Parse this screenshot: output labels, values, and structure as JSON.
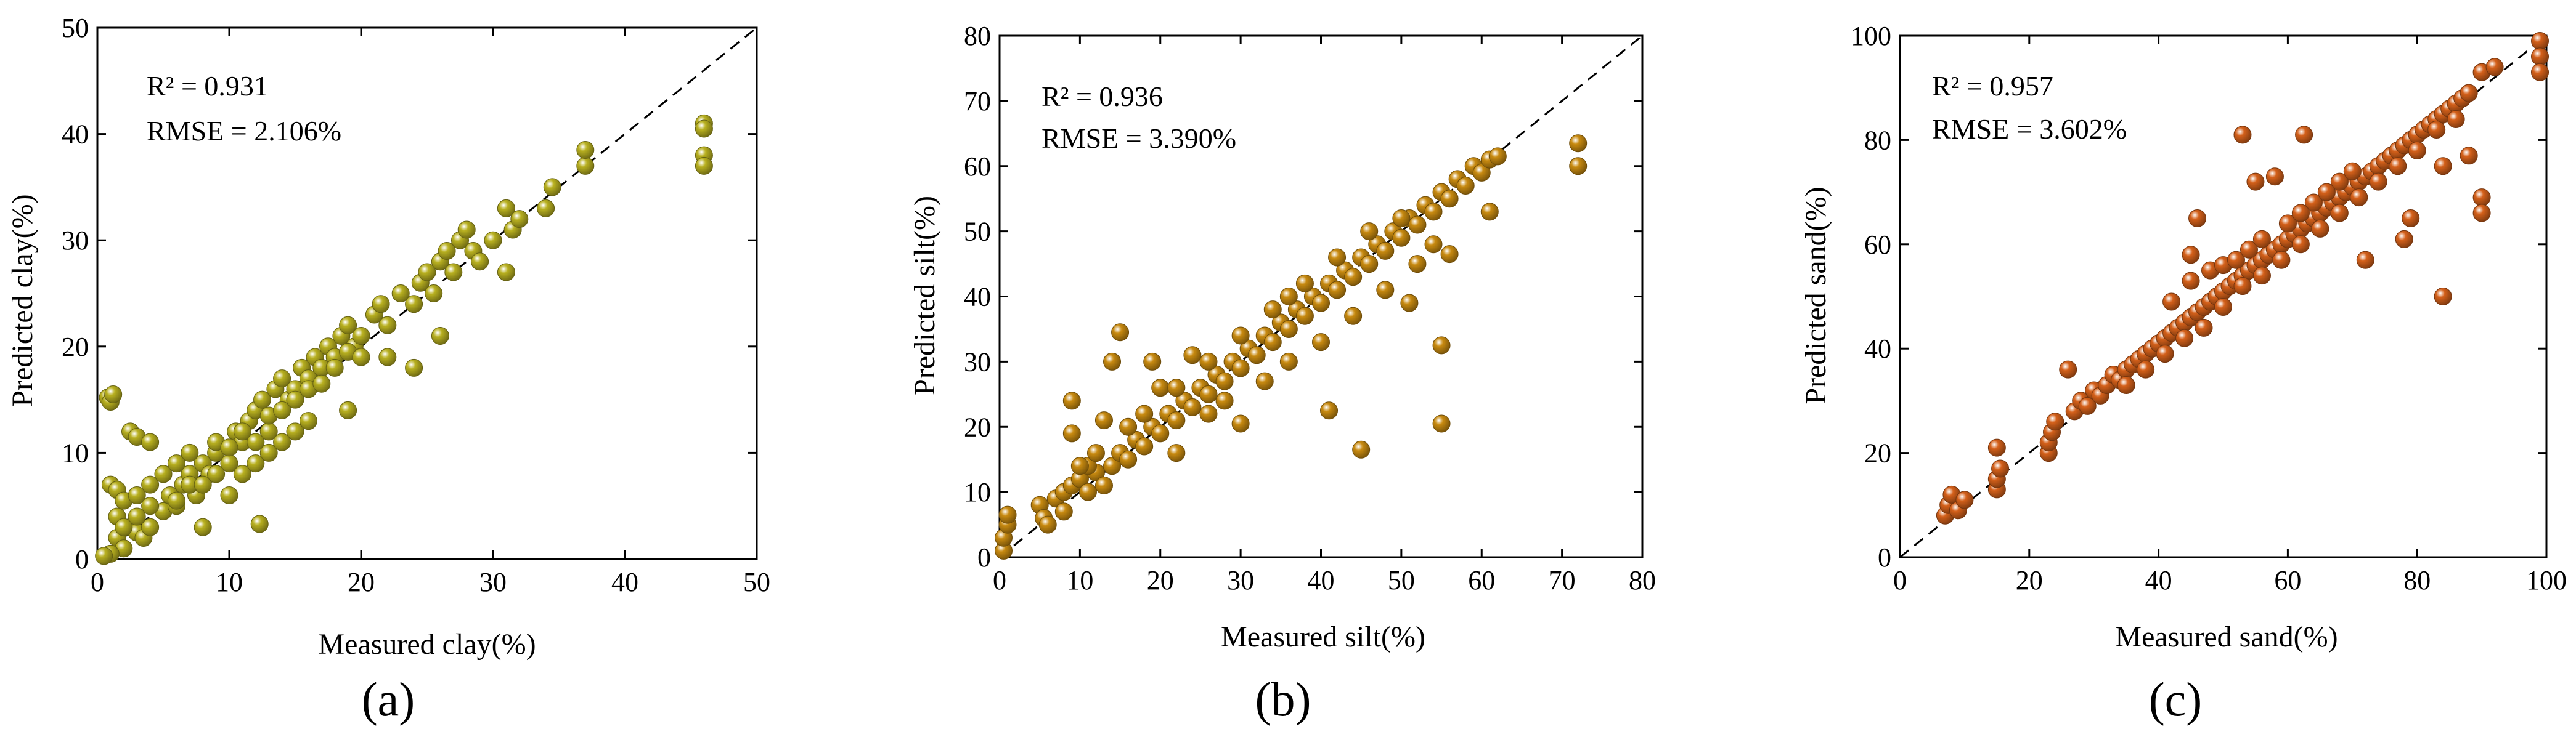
{
  "chart_data": [
    {
      "type": "scatter",
      "panel_label": "(a)",
      "xlabel": "Measured clay(%)",
      "ylabel": "Predicted clay(%)",
      "xlim": [
        0,
        50
      ],
      "ylim": [
        0,
        50
      ],
      "xticks": [
        0,
        10,
        20,
        30,
        40,
        50
      ],
      "yticks": [
        0,
        10,
        20,
        30,
        40,
        50
      ],
      "stats": {
        "r2": "R² = 0.931",
        "rmse": "RMSE = 2.106%"
      },
      "reference_line": "1:1",
      "marker_color": "#b8b020",
      "points": [
        [
          0.8,
          15.2
        ],
        [
          1,
          14.8
        ],
        [
          1.2,
          15.5
        ],
        [
          1,
          7
        ],
        [
          1.5,
          6.5
        ],
        [
          2,
          5.5
        ],
        [
          2.5,
          12
        ],
        [
          3,
          11.5
        ],
        [
          4,
          11
        ],
        [
          1.5,
          2
        ],
        [
          2,
          1
        ],
        [
          1,
          0.5
        ],
        [
          0.5,
          0.3
        ],
        [
          1.5,
          4
        ],
        [
          2.5,
          3
        ],
        [
          3,
          2.5
        ],
        [
          3.5,
          2
        ],
        [
          4,
          3
        ],
        [
          3,
          6
        ],
        [
          4,
          7
        ],
        [
          5,
          4.5
        ],
        [
          5.5,
          6
        ],
        [
          6,
          5
        ],
        [
          6.5,
          7
        ],
        [
          7,
          8
        ],
        [
          7.5,
          6
        ],
        [
          8,
          9
        ],
        [
          8.5,
          8
        ],
        [
          9,
          10
        ],
        [
          9,
          11
        ],
        [
          10,
          9
        ],
        [
          10.5,
          12
        ],
        [
          11,
          11
        ],
        [
          11.5,
          13
        ],
        [
          12,
          14
        ],
        [
          12.5,
          15
        ],
        [
          13,
          12
        ],
        [
          13.5,
          16
        ],
        [
          14,
          17
        ],
        [
          14.5,
          15
        ],
        [
          15,
          16
        ],
        [
          15.5,
          18
        ],
        [
          16,
          17
        ],
        [
          16.5,
          19
        ],
        [
          17,
          18
        ],
        [
          17.5,
          20
        ],
        [
          18,
          19
        ],
        [
          18.5,
          21
        ],
        [
          19,
          22
        ],
        [
          19.5,
          20
        ],
        [
          20,
          21
        ],
        [
          21,
          23
        ],
        [
          21.5,
          24
        ],
        [
          22,
          22
        ],
        [
          23,
          25
        ],
        [
          24,
          24
        ],
        [
          24.5,
          26
        ],
        [
          25,
          27
        ],
        [
          25.5,
          25
        ],
        [
          26,
          28
        ],
        [
          26.5,
          29
        ],
        [
          27,
          27
        ],
        [
          27.5,
          30
        ],
        [
          28,
          31
        ],
        [
          28.5,
          29
        ],
        [
          29,
          28
        ],
        [
          30,
          30
        ],
        [
          31,
          33
        ],
        [
          31.5,
          31
        ],
        [
          32,
          32
        ],
        [
          34,
          33
        ],
        [
          34.5,
          35
        ],
        [
          37,
          37
        ],
        [
          37,
          38.5
        ],
        [
          46,
          41
        ],
        [
          46,
          40.5
        ],
        [
          46,
          38
        ],
        [
          46,
          37
        ],
        [
          6,
          5.5
        ],
        [
          7,
          7
        ],
        [
          8,
          7
        ],
        [
          9,
          8
        ],
        [
          10,
          10.5
        ],
        [
          11,
          12
        ],
        [
          12,
          11
        ],
        [
          13,
          13.5
        ],
        [
          14,
          14
        ],
        [
          15,
          15
        ],
        [
          16,
          16
        ],
        [
          17,
          16.5
        ],
        [
          18,
          18
        ],
        [
          19,
          19.5
        ],
        [
          20,
          19
        ],
        [
          5,
          8
        ],
        [
          6,
          9
        ],
        [
          7,
          10
        ],
        [
          4,
          5
        ],
        [
          3,
          4
        ],
        [
          2,
          3
        ],
        [
          8,
          3
        ],
        [
          12.3,
          3.3
        ],
        [
          19,
          14
        ],
        [
          22,
          19
        ],
        [
          24,
          18
        ],
        [
          26,
          21
        ],
        [
          31,
          27
        ],
        [
          15,
          12
        ],
        [
          16,
          13
        ],
        [
          10,
          6
        ],
        [
          11,
          8
        ],
        [
          12,
          9
        ],
        [
          13,
          10
        ],
        [
          14,
          11
        ]
      ]
    },
    {
      "type": "scatter",
      "panel_label": "(b)",
      "xlabel": "Measured silt(%)",
      "ylabel": "Predicted silt(%)",
      "xlim": [
        0,
        80
      ],
      "ylim": [
        0,
        80
      ],
      "xticks": [
        0,
        10,
        20,
        30,
        40,
        50,
        60,
        70,
        80
      ],
      "yticks": [
        0,
        10,
        20,
        30,
        40,
        50,
        60,
        70,
        80
      ],
      "stats": {
        "r2": "R² = 0.936",
        "rmse": "RMSE = 3.390%"
      },
      "reference_line": "1:1",
      "marker_color": "#c88a10",
      "points": [
        [
          0.5,
          1
        ],
        [
          0.5,
          3
        ],
        [
          1,
          5
        ],
        [
          1,
          6.5
        ],
        [
          5,
          8
        ],
        [
          5.5,
          6
        ],
        [
          6,
          5
        ],
        [
          7,
          9
        ],
        [
          8,
          10
        ],
        [
          9,
          11
        ],
        [
          10,
          12
        ],
        [
          11,
          10
        ],
        [
          12,
          13
        ],
        [
          13,
          11
        ],
        [
          14,
          14
        ],
        [
          15,
          16
        ],
        [
          16,
          15
        ],
        [
          17,
          18
        ],
        [
          18,
          17
        ],
        [
          19,
          20
        ],
        [
          20,
          19
        ],
        [
          21,
          22
        ],
        [
          22,
          21
        ],
        [
          23,
          24
        ],
        [
          24,
          23
        ],
        [
          25,
          26
        ],
        [
          26,
          25
        ],
        [
          27,
          28
        ],
        [
          28,
          27
        ],
        [
          29,
          30
        ],
        [
          30,
          29
        ],
        [
          31,
          32
        ],
        [
          32,
          31
        ],
        [
          33,
          34
        ],
        [
          34,
          33
        ],
        [
          35,
          36
        ],
        [
          36,
          35
        ],
        [
          37,
          38
        ],
        [
          38,
          37
        ],
        [
          39,
          40
        ],
        [
          40,
          39
        ],
        [
          41,
          42
        ],
        [
          42,
          41
        ],
        [
          43,
          44
        ],
        [
          44,
          43
        ],
        [
          45,
          46
        ],
        [
          46,
          45
        ],
        [
          47,
          48
        ],
        [
          48,
          47
        ],
        [
          49,
          50
        ],
        [
          50,
          49
        ],
        [
          51,
          52
        ],
        [
          52,
          51
        ],
        [
          53,
          54
        ],
        [
          54,
          53
        ],
        [
          55,
          56
        ],
        [
          56,
          55
        ],
        [
          57,
          58
        ],
        [
          58,
          57
        ],
        [
          59,
          60
        ],
        [
          60,
          59
        ],
        [
          61,
          61
        ],
        [
          62,
          61.5
        ],
        [
          72,
          63.5
        ],
        [
          72,
          60
        ],
        [
          61,
          53
        ],
        [
          56,
          46.5
        ],
        [
          55,
          32.5
        ],
        [
          55,
          20.5
        ],
        [
          45,
          16.5
        ],
        [
          41,
          22.5
        ],
        [
          51,
          39
        ],
        [
          9,
          24
        ],
        [
          9,
          19
        ],
        [
          14,
          30
        ],
        [
          15,
          34.5
        ],
        [
          19,
          30
        ],
        [
          24,
          31
        ],
        [
          13,
          21
        ],
        [
          11,
          14
        ],
        [
          8,
          7
        ],
        [
          30,
          20.5
        ],
        [
          22,
          16
        ],
        [
          26,
          22
        ],
        [
          20,
          26
        ],
        [
          28,
          24
        ],
        [
          33,
          27
        ],
        [
          36,
          30
        ],
        [
          40,
          33
        ],
        [
          44,
          37
        ],
        [
          48,
          41
        ],
        [
          52,
          45
        ],
        [
          54,
          48
        ],
        [
          36,
          40
        ],
        [
          38,
          42
        ],
        [
          42,
          46
        ],
        [
          46,
          50
        ],
        [
          50,
          52
        ],
        [
          34,
          38
        ],
        [
          30,
          34
        ],
        [
          26,
          30
        ],
        [
          22,
          26
        ],
        [
          18,
          22
        ],
        [
          16,
          20
        ],
        [
          12,
          16
        ],
        [
          10,
          14
        ]
      ]
    },
    {
      "type": "scatter",
      "panel_label": "(c)",
      "xlabel": "Measured sand(%)",
      "ylabel": "Predicted sand(%)",
      "xlim": [
        0,
        100
      ],
      "ylim": [
        0,
        100
      ],
      "xticks": [
        0,
        20,
        40,
        60,
        80,
        100
      ],
      "yticks": [
        0,
        20,
        40,
        60,
        80,
        100
      ],
      "stats": {
        "r2": "R² = 0.957",
        "rmse": "RMSE = 3.602%"
      },
      "reference_line": "1:1",
      "marker_color": "#d4601a",
      "points": [
        [
          7,
          8
        ],
        [
          7.5,
          10
        ],
        [
          8,
          12
        ],
        [
          9,
          9
        ],
        [
          10,
          11
        ],
        [
          15,
          13
        ],
        [
          15,
          15
        ],
        [
          15.5,
          17
        ],
        [
          15,
          21
        ],
        [
          23,
          20
        ],
        [
          23,
          22
        ],
        [
          23.5,
          24
        ],
        [
          24,
          26
        ],
        [
          26,
          36
        ],
        [
          27,
          28
        ],
        [
          28,
          30
        ],
        [
          29,
          29
        ],
        [
          30,
          32
        ],
        [
          31,
          31
        ],
        [
          32,
          33
        ],
        [
          33,
          35
        ],
        [
          34,
          34
        ],
        [
          35,
          36
        ],
        [
          36,
          37
        ],
        [
          37,
          38
        ],
        [
          38,
          39
        ],
        [
          39,
          40
        ],
        [
          40,
          41
        ],
        [
          41,
          42
        ],
        [
          42,
          43
        ],
        [
          43,
          44
        ],
        [
          44,
          45
        ],
        [
          45,
          46
        ],
        [
          46,
          47
        ],
        [
          47,
          48
        ],
        [
          48,
          49
        ],
        [
          49,
          50
        ],
        [
          50,
          51
        ],
        [
          51,
          52
        ],
        [
          52,
          53
        ],
        [
          53,
          54
        ],
        [
          54,
          55
        ],
        [
          55,
          56
        ],
        [
          56,
          57
        ],
        [
          57,
          58
        ],
        [
          58,
          59
        ],
        [
          59,
          60
        ],
        [
          60,
          61
        ],
        [
          61,
          62
        ],
        [
          62,
          63
        ],
        [
          63,
          64
        ],
        [
          64,
          65
        ],
        [
          65,
          66
        ],
        [
          66,
          67
        ],
        [
          67,
          68
        ],
        [
          68,
          69
        ],
        [
          69,
          70
        ],
        [
          70,
          71
        ],
        [
          71,
          72
        ],
        [
          72,
          73
        ],
        [
          73,
          74
        ],
        [
          74,
          75
        ],
        [
          75,
          76
        ],
        [
          76,
          77
        ],
        [
          77,
          78
        ],
        [
          78,
          79
        ],
        [
          79,
          80
        ],
        [
          80,
          81
        ],
        [
          81,
          82
        ],
        [
          82,
          83
        ],
        [
          83,
          84
        ],
        [
          84,
          85
        ],
        [
          85,
          86
        ],
        [
          86,
          87
        ],
        [
          87,
          88
        ],
        [
          88,
          89
        ],
        [
          90,
          93
        ],
        [
          92,
          94
        ],
        [
          99,
          99
        ],
        [
          99,
          96
        ],
        [
          99,
          93
        ],
        [
          53,
          81
        ],
        [
          62.5,
          81
        ],
        [
          55,
          72
        ],
        [
          58,
          73
        ],
        [
          46,
          65
        ],
        [
          45,
          58
        ],
        [
          42,
          49
        ],
        [
          72,
          57
        ],
        [
          78,
          61
        ],
        [
          79,
          65
        ],
        [
          84,
          50
        ],
        [
          90,
          69
        ],
        [
          90,
          66
        ],
        [
          88,
          77
        ],
        [
          84,
          75
        ],
        [
          45,
          53
        ],
        [
          48,
          55
        ],
        [
          50,
          56
        ],
        [
          52,
          57
        ],
        [
          54,
          59
        ],
        [
          56,
          61
        ],
        [
          60,
          64
        ],
        [
          64,
          68
        ],
        [
          68,
          72
        ],
        [
          62,
          66
        ],
        [
          66,
          70
        ],
        [
          70,
          74
        ],
        [
          47,
          44
        ],
        [
          50,
          48
        ],
        [
          53,
          52
        ],
        [
          56,
          54
        ],
        [
          59,
          57
        ],
        [
          62,
          60
        ],
        [
          65,
          63
        ],
        [
          68,
          66
        ],
        [
          71,
          69
        ],
        [
          74,
          72
        ],
        [
          77,
          75
        ],
        [
          80,
          78
        ],
        [
          83,
          82
        ],
        [
          86,
          84
        ],
        [
          38,
          36
        ],
        [
          41,
          39
        ],
        [
          44,
          42
        ],
        [
          35,
          33
        ]
      ]
    }
  ]
}
